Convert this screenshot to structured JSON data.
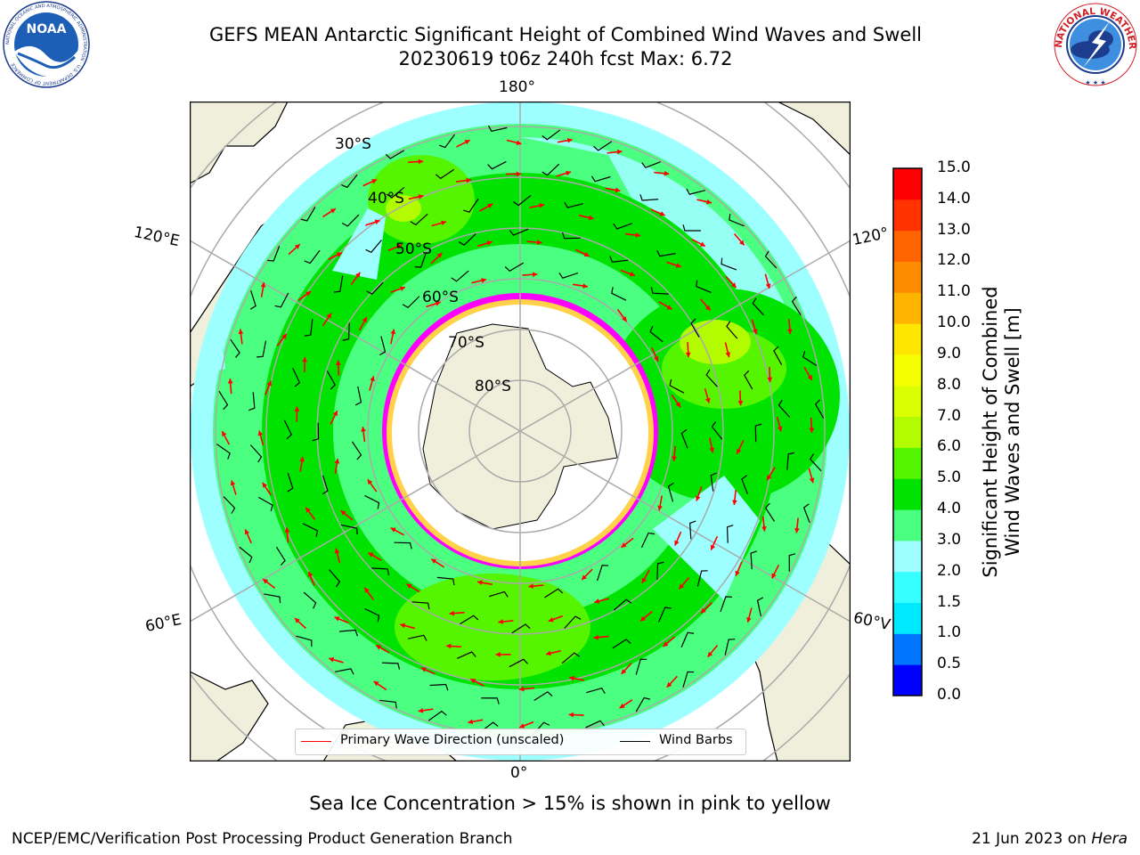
{
  "header": {
    "title_line1": "GEFS MEAN Antarctic Significant Height of Combined Wind Waves and Swell",
    "title_line2": "20230619 t06z 240h fcst   Max: 6.72"
  },
  "logos": {
    "noaa": {
      "text": "NOAA",
      "ring_text": "NATIONAL OCEANIC AND ATMOSPHERIC ADMINISTRATION · U.S. DEPARTMENT OF COMMERCE"
    },
    "nws": {
      "ring_text": "NATIONAL WEATHER SERVICE"
    }
  },
  "map": {
    "longitude_labels": [
      "180°",
      "120°E",
      "120°",
      "60°E",
      "60°V",
      "0°"
    ],
    "latitude_labels": [
      "30°S",
      "40°S",
      "50°S",
      "60°S",
      "70°S",
      "80°S"
    ],
    "legend": {
      "primary_wave": "Primary Wave Direction (unscaled)",
      "wind_barbs": "Wind Barbs"
    },
    "colors": {
      "wave_arrow": "#ff0000",
      "wind_barb": "#000000",
      "ice_pink": "#ff00ff",
      "ice_yellow": "#ffd24a",
      "land": "#efefdc"
    }
  },
  "colorbar": {
    "label_line1": "Significant Height of Combined",
    "label_line2": "Wind Waves and Swell [m]",
    "ticks": [
      "0.0",
      "0.5",
      "1.0",
      "1.5",
      "2.0",
      "3.0",
      "4.0",
      "5.0",
      "6.0",
      "7.0",
      "8.0",
      "9.0",
      "10.0",
      "11.0",
      "12.0",
      "13.0",
      "14.0",
      "15.0"
    ],
    "colors": [
      "#0000ff",
      "#0075ff",
      "#00eaff",
      "#36ffff",
      "#9dffff",
      "#4bff80",
      "#00e200",
      "#55f500",
      "#b3fb00",
      "#d9ff00",
      "#f5ff00",
      "#ffe600",
      "#ffb400",
      "#ff8c00",
      "#ff6400",
      "#ff3200",
      "#ff0000"
    ]
  },
  "footer": {
    "ice_note": "Sea Ice Concentration > 15% is shown in pink to yellow",
    "credit": "NCEP/EMC/Verification Post Processing Product Generation Branch",
    "date": "21 Jun 2023 on ",
    "host": "Hera"
  }
}
